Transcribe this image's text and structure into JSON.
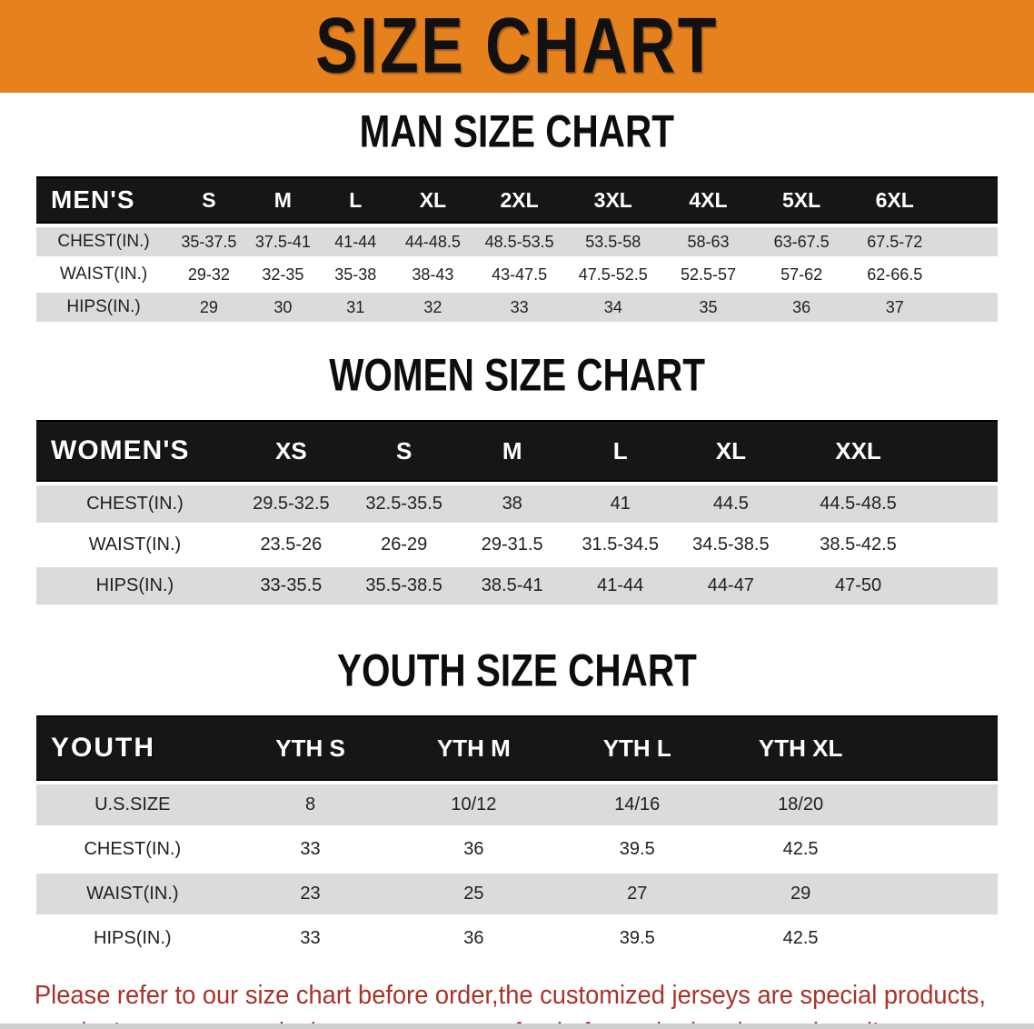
{
  "banner": {
    "title": "SIZE CHART",
    "bg_color": "#E6821E",
    "text_color": "#111111"
  },
  "colors": {
    "table_header_bg": "#161616",
    "table_stripe": "#DBDBDB",
    "footer_text": "#A93229"
  },
  "sections": [
    {
      "heading": "MAN SIZE CHART",
      "table": {
        "label": "MEN'S",
        "columns": [
          "S",
          "M",
          "L",
          "XL",
          "2XL",
          "3XL",
          "4XL",
          "5XL",
          "6XL"
        ],
        "rows": [
          {
            "label": "CHEST(IN.)",
            "values": [
              "35-37.5",
              "37.5-41",
              "41-44",
              "44-48.5",
              "48.5-53.5",
              "53.5-58",
              "58-63",
              "63-67.5",
              "67.5-72"
            ]
          },
          {
            "label": "WAIST(IN.)",
            "values": [
              "29-32",
              "32-35",
              "35-38",
              "38-43",
              "43-47.5",
              "47.5-52.5",
              "52.5-57",
              "57-62",
              "62-66.5"
            ]
          },
          {
            "label": "HIPS(IN.)",
            "values": [
              "29",
              "30",
              "31",
              "32",
              "33",
              "34",
              "35",
              "36",
              "37"
            ]
          }
        ]
      }
    },
    {
      "heading": "WOMEN SIZE CHART",
      "table": {
        "label": "WOMEN'S",
        "columns": [
          "XS",
          "S",
          "M",
          "L",
          "XL",
          "XXL"
        ],
        "rows": [
          {
            "label": "CHEST(IN.)",
            "values": [
              "29.5-32.5",
              "32.5-35.5",
              "38",
              "41",
              "44.5",
              "44.5-48.5"
            ]
          },
          {
            "label": "WAIST(IN.)",
            "values": [
              "23.5-26",
              "26-29",
              "29-31.5",
              "31.5-34.5",
              "34.5-38.5",
              "38.5-42.5"
            ]
          },
          {
            "label": "HIPS(IN.)",
            "values": [
              "33-35.5",
              "35.5-38.5",
              "38.5-41",
              "41-44",
              "44-47",
              "47-50"
            ]
          }
        ]
      }
    },
    {
      "heading": "YOUTH SIZE CHART",
      "table": {
        "label": "YOUTH",
        "columns": [
          "YTH S",
          "YTH M",
          "YTH L",
          "YTH XL"
        ],
        "rows": [
          {
            "label": "U.S.SIZE",
            "values": [
              "8",
              "10/12",
              "14/16",
              "18/20"
            ]
          },
          {
            "label": "CHEST(IN.)",
            "values": [
              "33",
              "36",
              "39.5",
              "42.5"
            ]
          },
          {
            "label": "WAIST(IN.)",
            "values": [
              "23",
              "25",
              "27",
              "29"
            ]
          },
          {
            "label": "HIPS(IN.)",
            "values": [
              "33",
              "36",
              "39.5",
              "42.5"
            ]
          }
        ]
      }
    }
  ],
  "footer": {
    "line1": "Please refer to our size chart before order,the customized jerseys are special products,",
    "line2": "we don't accept cancel, change, teturn or refund after order has been placed!"
  }
}
